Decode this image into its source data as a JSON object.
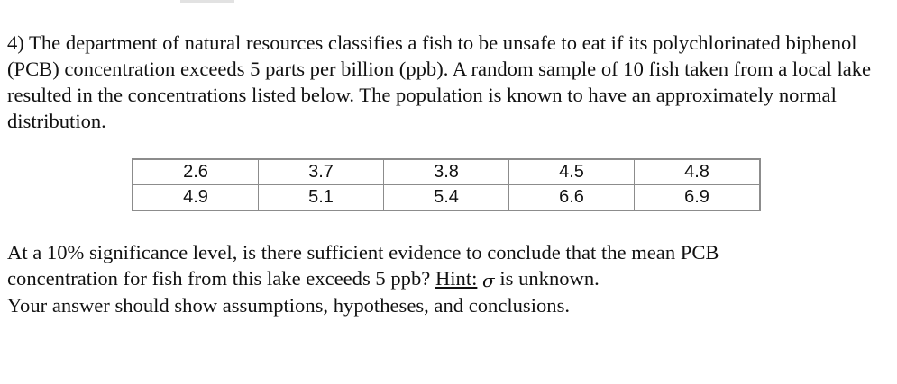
{
  "problem": {
    "text": "4) The department of natural resources classifies a fish to be unsafe to eat if its polychlorinated biphenol (PCB) concentration exceeds 5 parts per billion (ppb). A random sample of 10 fish taken from a local lake resulted in the concentrations listed below.  The population is known to have an approximately normal distribution."
  },
  "table": {
    "rows": [
      [
        "2.6",
        "3.7",
        "3.8",
        "4.5",
        "4.8"
      ],
      [
        "4.9",
        "5.1",
        "5.4",
        "6.6",
        "6.9"
      ]
    ]
  },
  "question": {
    "line1": "At a 10% significance level, is there sufficient evidence to conclude that the mean PCB",
    "line2_pre": "concentration for fish from this lake exceeds 5 ppb? ",
    "hint_label": "Hint:",
    "sigma": "σ",
    "line2_post": " is unknown.",
    "line3": "Your answer should show assumptions, hypotheses, and conclusions."
  }
}
